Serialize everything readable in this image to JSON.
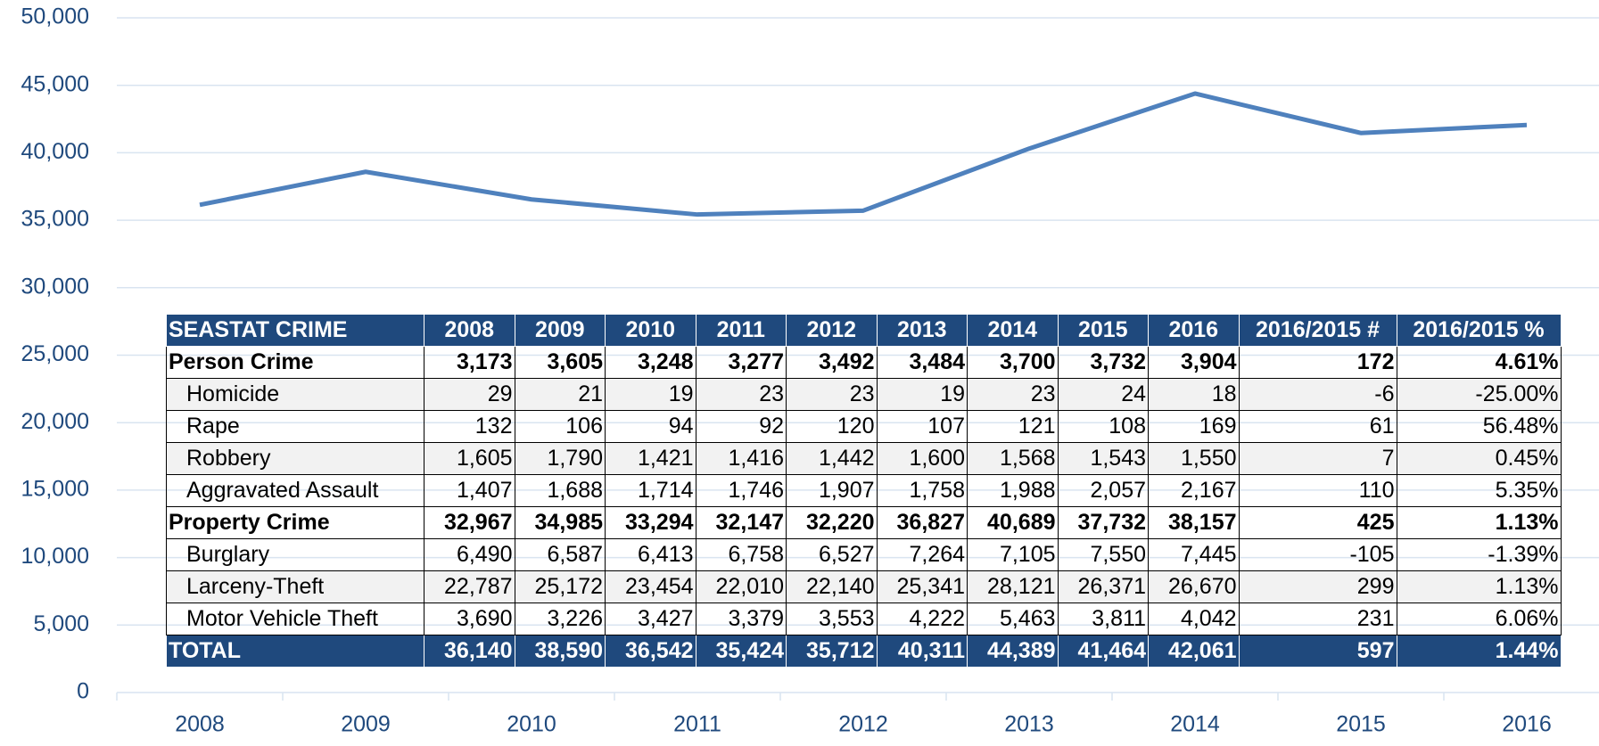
{
  "chart_data": {
    "type": "line",
    "categories": [
      "2008",
      "2009",
      "2010",
      "2011",
      "2012",
      "2013",
      "2014",
      "2015",
      "2016"
    ],
    "values": [
      36140,
      38590,
      36542,
      35424,
      35712,
      40311,
      44389,
      41464,
      42061
    ],
    "value_labels": [
      "36,140",
      "38,590",
      "36,542",
      "35,424",
      "35,712",
      "40,311",
      "44,389",
      "41,464",
      "42,061"
    ],
    "color": "#4f81bd",
    "ylim": [
      0,
      50000
    ],
    "yticks": [
      0,
      {
        "value": 5000,
        "label": "5,000"
      },
      {
        "value": 10000,
        "label": "10,000"
      },
      {
        "value": 15000,
        "label": "15,000"
      },
      {
        "value": 20000,
        "label": "20,000"
      },
      {
        "value": 25000,
        "label": "25,000"
      },
      {
        "value": 30000,
        "label": "30,000"
      },
      {
        "value": 35000,
        "label": "35,000"
      },
      {
        "value": 40000,
        "label": "40,000"
      },
      {
        "value": 45000,
        "label": "45,000"
      },
      {
        "value": 50000,
        "label": "50,000"
      }
    ],
    "grid": true
  },
  "table": {
    "corner": "SEASTAT CRIME",
    "change_headers": [
      "2016/2015 #",
      "2016/2015 %"
    ],
    "rows": [
      {
        "label": "Person Crime",
        "style": "bold",
        "values": [
          "3,173",
          "3,605",
          "3,248",
          "3,277",
          "3,492",
          "3,484",
          "3,700",
          "3,732",
          "3,904"
        ],
        "change": [
          "172",
          "4.61%"
        ]
      },
      {
        "label": "Homicide",
        "style": "normal",
        "values": [
          "29",
          "21",
          "19",
          "23",
          "23",
          "19",
          "23",
          "24",
          "18"
        ],
        "change": [
          "-6",
          "-25.00%"
        ]
      },
      {
        "label": "Rape",
        "style": "normal",
        "values": [
          "132",
          "106",
          "94",
          "92",
          "120",
          "107",
          "121",
          "108",
          "169"
        ],
        "change": [
          "61",
          "56.48%"
        ]
      },
      {
        "label": "Robbery",
        "style": "normal",
        "values": [
          "1,605",
          "1,790",
          "1,421",
          "1,416",
          "1,442",
          "1,600",
          "1,568",
          "1,543",
          "1,550"
        ],
        "change": [
          "7",
          "0.45%"
        ]
      },
      {
        "label": "Aggravated Assault",
        "style": "normal",
        "values": [
          "1,407",
          "1,688",
          "1,714",
          "1,746",
          "1,907",
          "1,758",
          "1,988",
          "2,057",
          "2,167"
        ],
        "change": [
          "110",
          "5.35%"
        ]
      },
      {
        "label": "Property Crime",
        "style": "bold",
        "values": [
          "32,967",
          "34,985",
          "33,294",
          "32,147",
          "32,220",
          "36,827",
          "40,689",
          "37,732",
          "38,157"
        ],
        "change": [
          "425",
          "1.13%"
        ]
      },
      {
        "label": "Burglary",
        "style": "normal",
        "values": [
          "6,490",
          "6,587",
          "6,413",
          "6,758",
          "6,527",
          "7,264",
          "7,105",
          "7,550",
          "7,445"
        ],
        "change": [
          "-105",
          "-1.39%"
        ]
      },
      {
        "label": "Larceny-Theft",
        "style": "normal",
        "values": [
          "22,787",
          "25,172",
          "23,454",
          "22,010",
          "22,140",
          "25,341",
          "28,121",
          "26,371",
          "26,670"
        ],
        "change": [
          "299",
          "1.13%"
        ]
      },
      {
        "label": "Motor Vehicle Theft",
        "style": "normal",
        "values": [
          "3,690",
          "3,226",
          "3,427",
          "3,379",
          "3,553",
          "4,222",
          "5,463",
          "3,811",
          "4,042"
        ],
        "change": [
          "231",
          "6.06%"
        ]
      },
      {
        "label": "TOTAL",
        "style": "total",
        "change": [
          "597",
          "1.44%"
        ]
      }
    ]
  }
}
